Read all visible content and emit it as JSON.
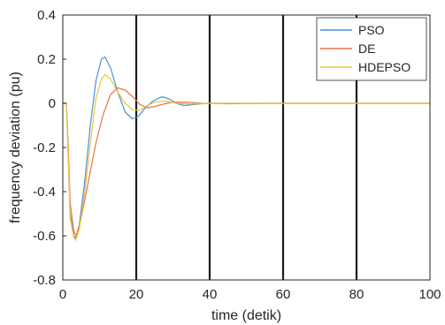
{
  "chart_data": {
    "type": "line",
    "xlabel": "time (detik)",
    "ylabel": "frequency deviation (pu)",
    "xlim": [
      0,
      100
    ],
    "ylim": [
      -0.8,
      0.4
    ],
    "xticks": [
      0,
      20,
      40,
      60,
      80,
      100
    ],
    "yticks": [
      0.4,
      0.2,
      0,
      -0.2,
      -0.4,
      -0.6,
      -0.8
    ],
    "x_tick_labels": [
      "0",
      "20",
      "40",
      "60",
      "80",
      "100"
    ],
    "y_tick_labels": [
      "0.4",
      "0.2",
      "0",
      "-0.2",
      "-0.4",
      "-0.6",
      "-0.8"
    ],
    "grid": "vertical lines at x ticks",
    "legend_position": "top-right",
    "series": [
      {
        "name": "PSO",
        "color": "#4a90d9",
        "points": [
          [
            0,
            0
          ],
          [
            1,
            0
          ],
          [
            1.5,
            -0.25
          ],
          [
            2,
            -0.5
          ],
          [
            3,
            -0.6
          ],
          [
            3.5,
            -0.61
          ],
          [
            4.5,
            -0.55
          ],
          [
            6,
            -0.35
          ],
          [
            7.5,
            -0.1
          ],
          [
            9,
            0.1
          ],
          [
            10.5,
            0.2
          ],
          [
            11.5,
            0.21
          ],
          [
            13,
            0.16
          ],
          [
            15,
            0.05
          ],
          [
            17,
            -0.04
          ],
          [
            19,
            -0.07
          ],
          [
            20.5,
            -0.06
          ],
          [
            22.5,
            -0.02
          ],
          [
            24.5,
            0.01
          ],
          [
            27,
            0.03
          ],
          [
            29,
            0.02
          ],
          [
            31,
            0.0
          ],
          [
            33,
            -0.01
          ],
          [
            36,
            -0.005
          ],
          [
            39,
            0.0
          ],
          [
            45,
            0.0
          ],
          [
            100,
            0.0
          ]
        ]
      },
      {
        "name": "DE",
        "color": "#e8744a",
        "points": [
          [
            0,
            0
          ],
          [
            1,
            0
          ],
          [
            1.5,
            -0.2
          ],
          [
            2,
            -0.45
          ],
          [
            3,
            -0.58
          ],
          [
            3.7,
            -0.6
          ],
          [
            5,
            -0.52
          ],
          [
            7,
            -0.35
          ],
          [
            9,
            -0.18
          ],
          [
            11,
            -0.05
          ],
          [
            13,
            0.04
          ],
          [
            15,
            0.07
          ],
          [
            17,
            0.06
          ],
          [
            19,
            0.03
          ],
          [
            21,
            -0.005
          ],
          [
            23,
            -0.02
          ],
          [
            25,
            -0.015
          ],
          [
            27,
            -0.005
          ],
          [
            30,
            0.005
          ],
          [
            34,
            0.005
          ],
          [
            38,
            0.0
          ],
          [
            45,
            -0.002
          ],
          [
            55,
            0.0
          ],
          [
            100,
            0.0
          ]
        ]
      },
      {
        "name": "HDEPSO",
        "color": "#edc43b",
        "points": [
          [
            0,
            0
          ],
          [
            1,
            0
          ],
          [
            1.5,
            -0.25
          ],
          [
            2,
            -0.52
          ],
          [
            3,
            -0.61
          ],
          [
            3.5,
            -0.62
          ],
          [
            4.5,
            -0.57
          ],
          [
            6,
            -0.4
          ],
          [
            7.5,
            -0.18
          ],
          [
            9,
            0.02
          ],
          [
            10.5,
            0.11
          ],
          [
            11.5,
            0.13
          ],
          [
            13,
            0.11
          ],
          [
            15,
            0.05
          ],
          [
            17,
            0.0
          ],
          [
            19,
            -0.03
          ],
          [
            21,
            -0.03
          ],
          [
            23,
            -0.01
          ],
          [
            25,
            0.005
          ],
          [
            28,
            0.01
          ],
          [
            31,
            0.0
          ],
          [
            35,
            -0.003
          ],
          [
            40,
            0.0
          ],
          [
            100,
            0.0
          ]
        ]
      }
    ]
  }
}
